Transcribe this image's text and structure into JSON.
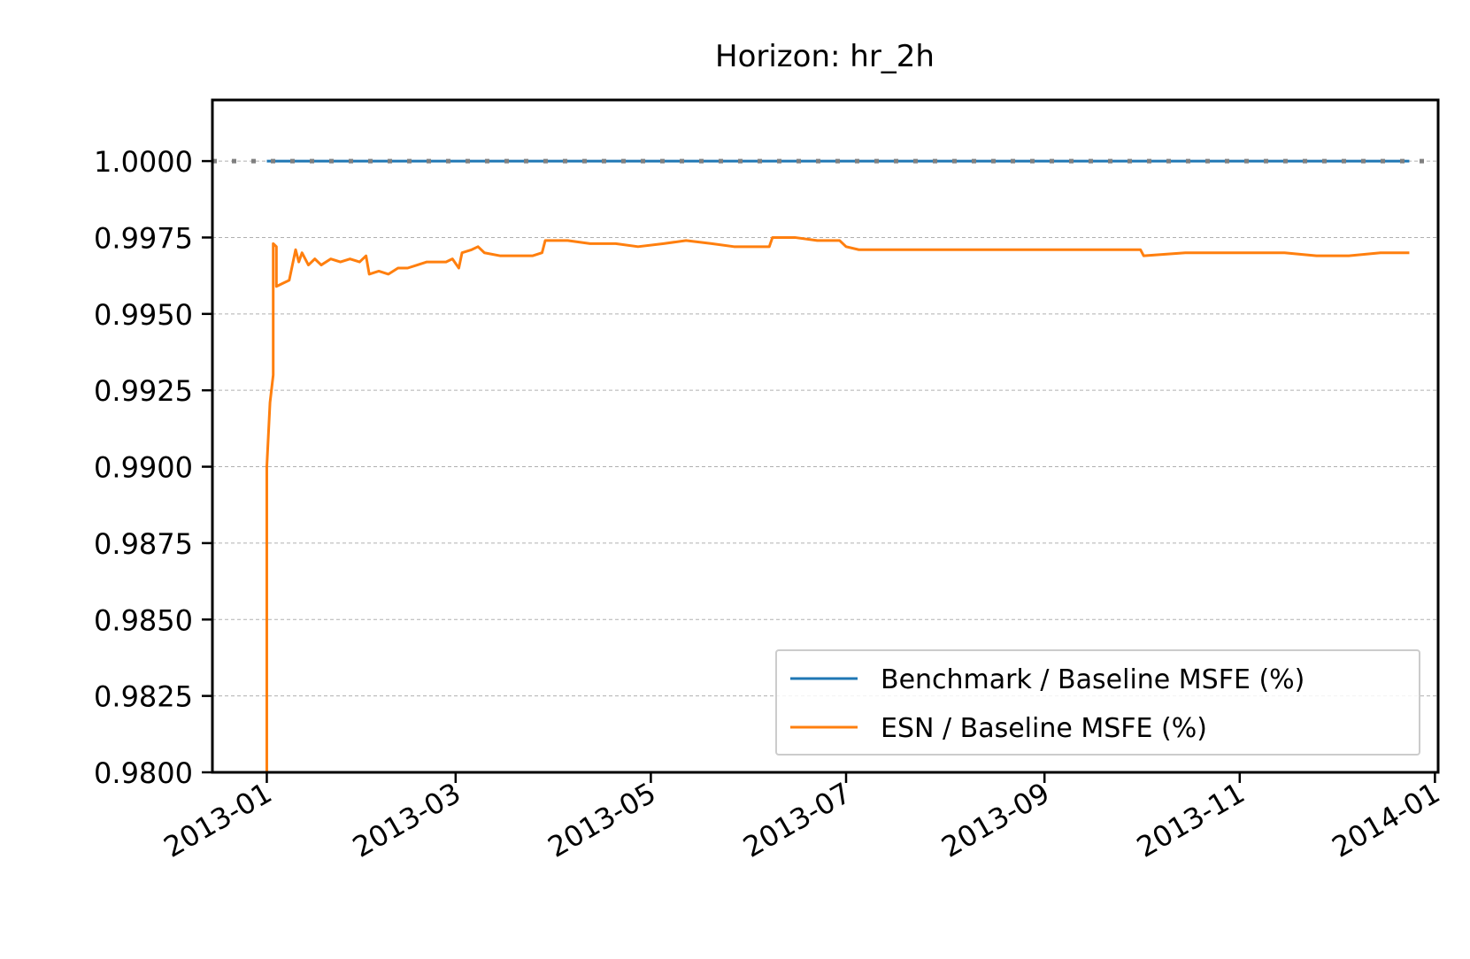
{
  "chart_data": {
    "type": "line",
    "title": "Horizon: hr_2h",
    "xlabel": "",
    "ylabel": "",
    "x_ticks": [
      "2013-01",
      "2013-03",
      "2013-05",
      "2013-07",
      "2013-09",
      "2013-11",
      "2014-01"
    ],
    "y_ticks": [
      "0.9800",
      "0.9825",
      "0.9850",
      "0.9875",
      "0.9900",
      "0.9925",
      "0.9950",
      "0.9975",
      "1.0000"
    ],
    "xlim": [
      "2012-12-15",
      "2014-01-02"
    ],
    "ylim": [
      0.98,
      1.002
    ],
    "grid": "y-dashed",
    "legend_position": "lower-right",
    "reference_line": {
      "y": 1.0,
      "style": "dotted",
      "color": "#7f7f7f"
    },
    "series": [
      {
        "name": "Benchmark / Baseline MSFE (%)",
        "color": "#1f77b4",
        "points": [
          [
            "2013-01-01",
            1.0
          ],
          [
            "2013-12-24",
            1.0
          ]
        ]
      },
      {
        "name": "ESN / Baseline MSFE (%)",
        "color": "#ff7f0e",
        "points": [
          [
            "2013-01-01",
            0.98
          ],
          [
            "2013-01-01",
            0.99
          ],
          [
            "2013-01-02",
            0.9921
          ],
          [
            "2013-01-03",
            0.993
          ],
          [
            "2013-01-03",
            0.9973
          ],
          [
            "2013-01-04",
            0.9972
          ],
          [
            "2013-01-04",
            0.9959
          ],
          [
            "2013-01-06",
            0.996
          ],
          [
            "2013-01-08",
            0.9961
          ],
          [
            "2013-01-09",
            0.9966
          ],
          [
            "2013-01-10",
            0.9971
          ],
          [
            "2013-01-11",
            0.9967
          ],
          [
            "2013-01-12",
            0.997
          ],
          [
            "2013-01-14",
            0.9966
          ],
          [
            "2013-01-16",
            0.9968
          ],
          [
            "2013-01-18",
            0.9966
          ],
          [
            "2013-01-21",
            0.9968
          ],
          [
            "2013-01-24",
            0.9967
          ],
          [
            "2013-01-27",
            0.9968
          ],
          [
            "2013-01-30",
            0.9967
          ],
          [
            "2013-02-01",
            0.9969
          ],
          [
            "2013-02-02",
            0.9963
          ],
          [
            "2013-02-05",
            0.9964
          ],
          [
            "2013-02-08",
            0.9963
          ],
          [
            "2013-02-11",
            0.9965
          ],
          [
            "2013-02-14",
            0.9965
          ],
          [
            "2013-02-17",
            0.9966
          ],
          [
            "2013-02-20",
            0.9967
          ],
          [
            "2013-02-23",
            0.9967
          ],
          [
            "2013-02-26",
            0.9967
          ],
          [
            "2013-02-28",
            0.9968
          ],
          [
            "2013-03-02",
            0.9965
          ],
          [
            "2013-03-03",
            0.997
          ],
          [
            "2013-03-06",
            0.9971
          ],
          [
            "2013-03-08",
            0.9972
          ],
          [
            "2013-03-10",
            0.997
          ],
          [
            "2013-03-15",
            0.9969
          ],
          [
            "2013-03-20",
            0.9969
          ],
          [
            "2013-03-25",
            0.9969
          ],
          [
            "2013-03-28",
            0.997
          ],
          [
            "2013-03-29",
            0.9974
          ],
          [
            "2013-04-05",
            0.9974
          ],
          [
            "2013-04-12",
            0.9973
          ],
          [
            "2013-04-20",
            0.9973
          ],
          [
            "2013-04-27",
            0.9972
          ],
          [
            "2013-05-05",
            0.9973
          ],
          [
            "2013-05-12",
            0.9974
          ],
          [
            "2013-05-20",
            0.9973
          ],
          [
            "2013-05-27",
            0.9972
          ],
          [
            "2013-06-03",
            0.9972
          ],
          [
            "2013-06-07",
            0.9972
          ],
          [
            "2013-06-08",
            0.9975
          ],
          [
            "2013-06-15",
            0.9975
          ],
          [
            "2013-06-22",
            0.9974
          ],
          [
            "2013-06-29",
            0.9974
          ],
          [
            "2013-07-01",
            0.9972
          ],
          [
            "2013-07-05",
            0.9971
          ],
          [
            "2013-07-15",
            0.9971
          ],
          [
            "2013-07-25",
            0.9971
          ],
          [
            "2013-08-05",
            0.9971
          ],
          [
            "2013-08-20",
            0.9971
          ],
          [
            "2013-09-05",
            0.9971
          ],
          [
            "2013-09-20",
            0.9971
          ],
          [
            "2013-10-01",
            0.9971
          ],
          [
            "2013-10-02",
            0.9969
          ],
          [
            "2013-10-15",
            0.997
          ],
          [
            "2013-11-01",
            0.997
          ],
          [
            "2013-11-15",
            0.997
          ],
          [
            "2013-11-25",
            0.9969
          ],
          [
            "2013-12-05",
            0.9969
          ],
          [
            "2013-12-15",
            0.997
          ],
          [
            "2013-12-24",
            0.997
          ]
        ]
      }
    ]
  }
}
